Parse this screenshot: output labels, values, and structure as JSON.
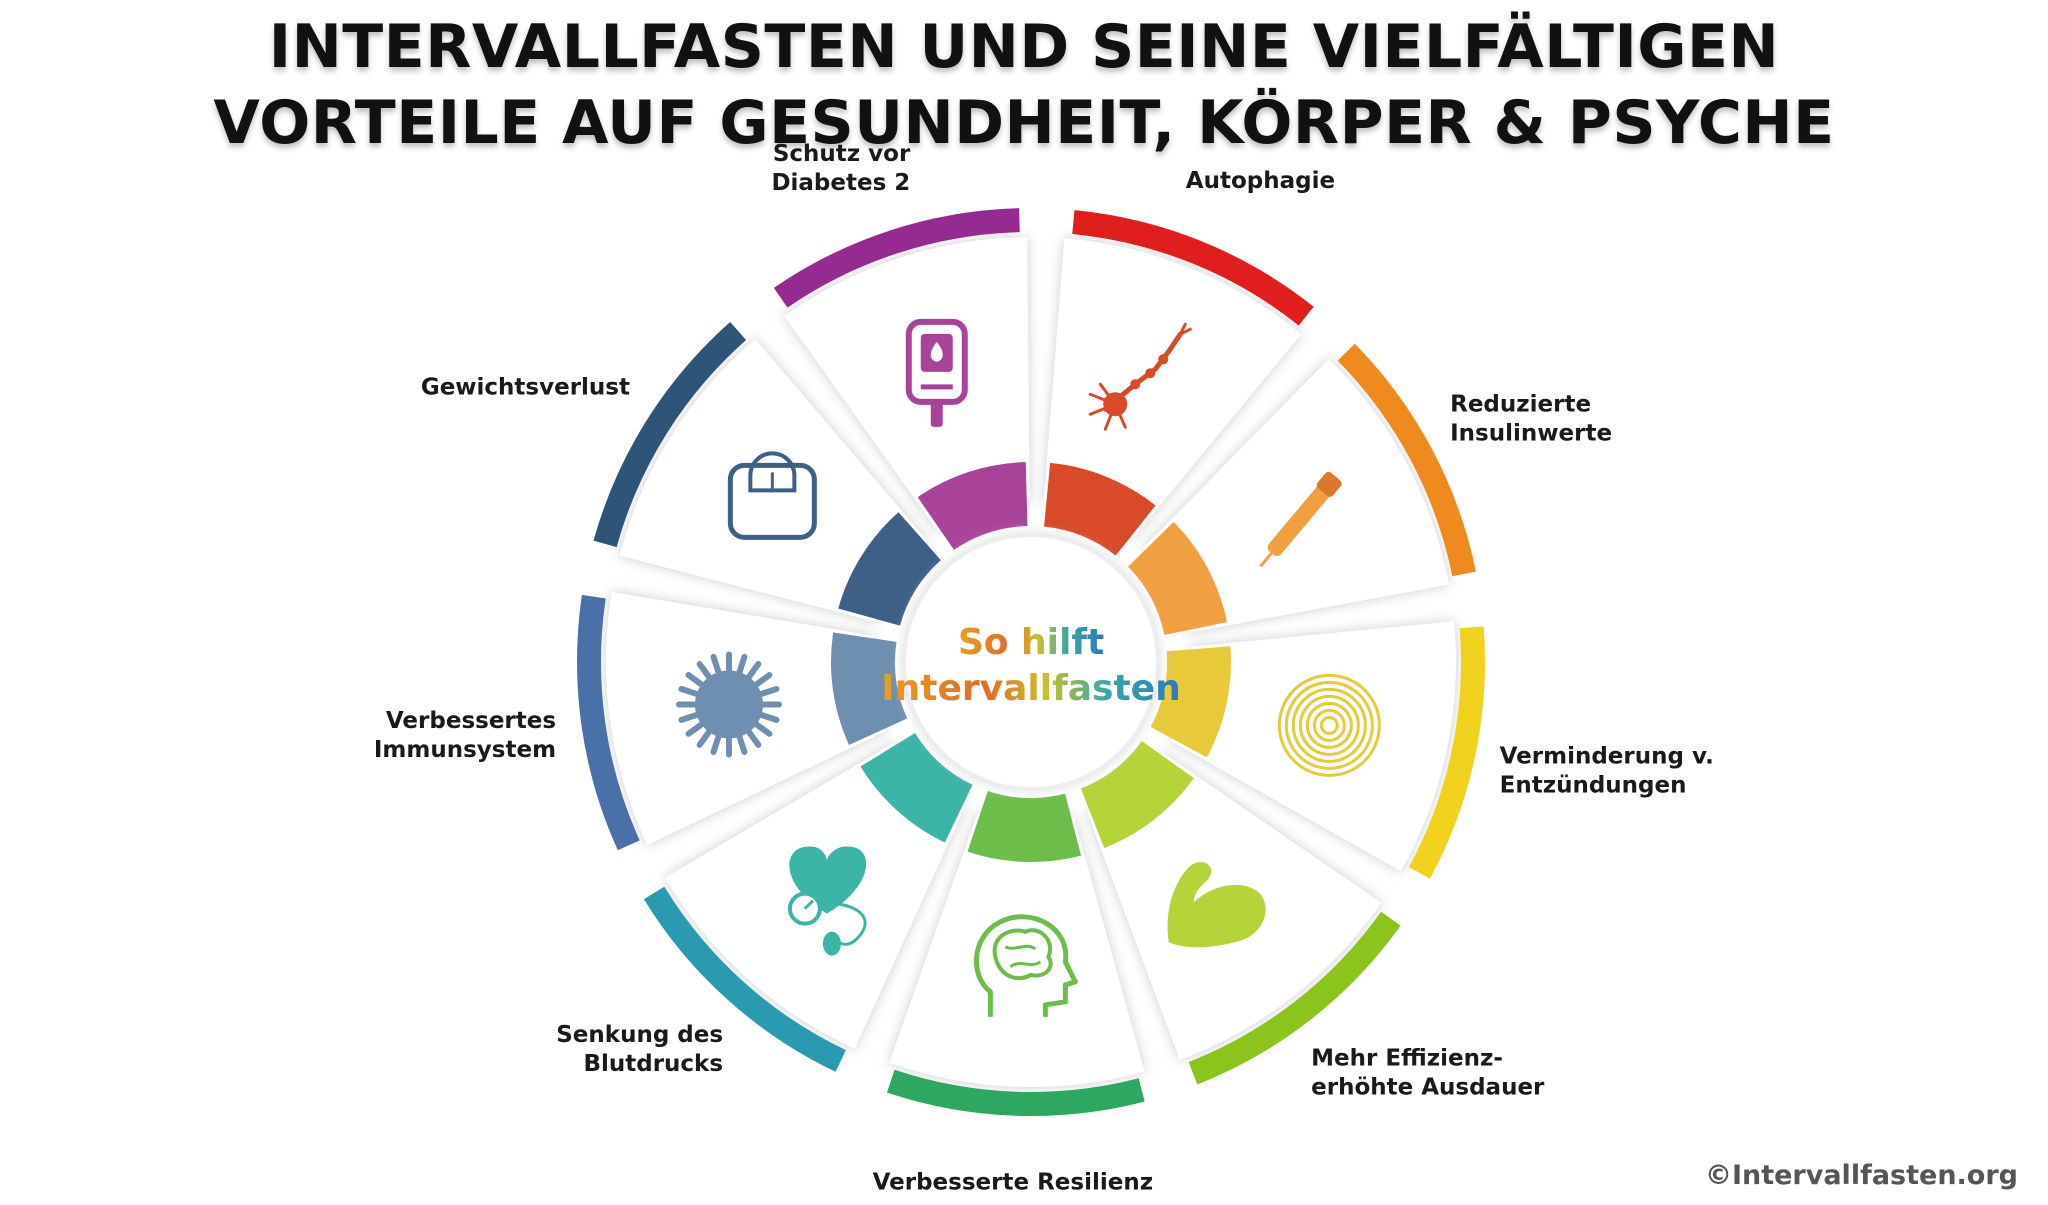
{
  "title": {
    "line1": "INTERVALLFASTEN UND SEINE VIELFÄLTIGEN",
    "line2": "VORTEILE AUF GESUNDHEIT, KÖRPER & PSYCHE"
  },
  "center": {
    "line1": "So hilft",
    "line2": "Intervallfasten"
  },
  "segments": [
    {
      "id": "autophagie",
      "lines": [
        "Autophagie"
      ],
      "color": "#e01e1e",
      "color2": "#d94a2a",
      "icon": "neuron-icon"
    },
    {
      "id": "insulin",
      "lines": [
        "Reduzierte",
        "Insulinwerte"
      ],
      "color": "#ee8a1e",
      "color2": "#f0a040",
      "icon": "insulin-pen-icon"
    },
    {
      "id": "entzuendungen",
      "lines": [
        "Verminderung v.",
        "Entzündungen"
      ],
      "color": "#f0d21e",
      "color2": "#e8c93a",
      "icon": "concentric-rings-icon"
    },
    {
      "id": "ausdauer",
      "lines": [
        "Mehr Effizienz-",
        "erhöhte Ausdauer"
      ],
      "color": "#8cc41e",
      "color2": "#b4d43a",
      "icon": "flexed-arm-icon"
    },
    {
      "id": "resilienz",
      "lines": [
        "Verbesserte Resilienz"
      ],
      "color": "#2ea860",
      "color2": "#6cbd4a",
      "icon": "brain-head-icon"
    },
    {
      "id": "blutdruck",
      "lines": [
        "Senkung des",
        "Blutdrucks"
      ],
      "color": "#2a9ab0",
      "color2": "#3cb4a6",
      "icon": "heart-blood-pressure-icon"
    },
    {
      "id": "immunsystem",
      "lines": [
        "Verbessertes",
        "Immunsystem"
      ],
      "color": "#4a70a8",
      "color2": "#6e8fb0",
      "icon": "virus-cell-icon"
    },
    {
      "id": "gewicht",
      "lines": [
        "Gewichtsverlust"
      ],
      "color": "#2e5478",
      "color2": "#3e5f86",
      "icon": "scale-icon"
    },
    {
      "id": "diabetes",
      "lines": [
        "Schutz vor",
        "Diabetes 2"
      ],
      "color": "#952a90",
      "color2": "#a9439a",
      "icon": "glucose-meter-icon"
    }
  ],
  "copyright": "©Intervallfasten.org"
}
